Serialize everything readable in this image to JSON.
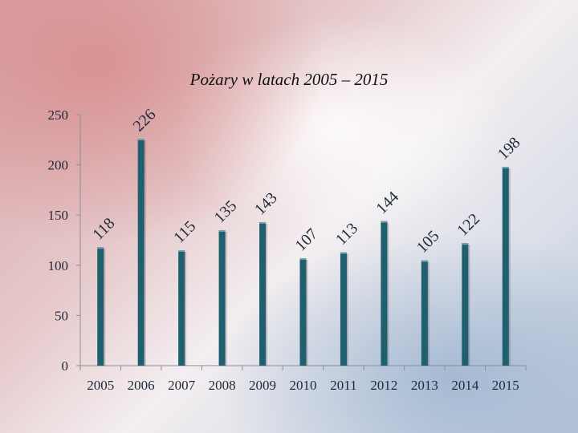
{
  "chart_data": {
    "type": "bar",
    "title": "Pożary w latach 2005 – 2015",
    "categories": [
      "2005",
      "2006",
      "2007",
      "2008",
      "2009",
      "2010",
      "2011",
      "2012",
      "2013",
      "2014",
      "2015"
    ],
    "values": [
      118,
      226,
      115,
      135,
      143,
      107,
      113,
      144,
      105,
      122,
      198
    ],
    "ylim": [
      0,
      250
    ],
    "yticks": [
      0,
      50,
      100,
      150,
      200,
      250
    ],
    "grid": false,
    "legend": "none",
    "bar_color": "#1f5f6e",
    "xlabel": "",
    "ylabel": ""
  }
}
